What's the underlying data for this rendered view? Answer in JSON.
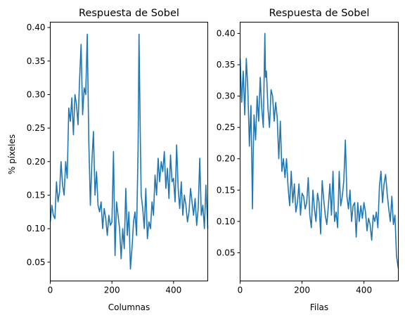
{
  "chart_data": [
    {
      "type": "line",
      "title": "Respuesta de Sobel",
      "xlabel": "Columnas",
      "ylabel": "% píxeles",
      "xlim": [
        0,
        511
      ],
      "ylim": [
        0.022,
        0.408
      ],
      "xticks": [
        0,
        200,
        400
      ],
      "yticks": [
        0.05,
        0.1,
        0.15,
        0.2,
        0.25,
        0.3,
        0.35,
        0.4
      ],
      "xticklabels": [
        "0",
        "200",
        "400"
      ],
      "yticklabels": [
        "0.05",
        "0.10",
        "0.15",
        "0.20",
        "0.25",
        "0.30",
        "0.35",
        "0.40"
      ],
      "color": "#1f77b4",
      "series": [
        {
          "x": [
            0,
            5,
            10,
            15,
            20,
            25,
            30,
            35,
            40,
            45,
            50,
            55,
            60,
            65,
            70,
            75,
            80,
            85,
            90,
            95,
            100,
            105,
            110,
            115,
            120,
            125,
            130,
            135,
            140,
            145,
            150,
            155,
            160,
            165,
            170,
            175,
            180,
            185,
            190,
            195,
            200,
            205,
            210,
            215,
            220,
            225,
            230,
            235,
            240,
            245,
            250,
            255,
            260,
            265,
            270,
            275,
            280,
            285,
            288,
            292,
            295,
            300,
            305,
            310,
            315,
            320,
            325,
            330,
            335,
            340,
            345,
            350,
            355,
            360,
            365,
            370,
            375,
            380,
            385,
            390,
            395,
            400,
            405,
            410,
            415,
            420,
            425,
            430,
            435,
            440,
            445,
            450,
            455,
            460,
            465,
            470,
            475,
            480,
            485,
            490,
            495,
            500,
            505,
            511
          ],
          "values": [
            0.11,
            0.135,
            0.12,
            0.115,
            0.17,
            0.14,
            0.155,
            0.2,
            0.165,
            0.15,
            0.2,
            0.175,
            0.28,
            0.26,
            0.295,
            0.24,
            0.3,
            0.285,
            0.255,
            0.32,
            0.375,
            0.27,
            0.31,
            0.3,
            0.39,
            0.23,
            0.135,
            0.2,
            0.245,
            0.15,
            0.185,
            0.135,
            0.125,
            0.14,
            0.1,
            0.13,
            0.115,
            0.09,
            0.12,
            0.105,
            0.11,
            0.215,
            0.06,
            0.14,
            0.12,
            0.1,
            0.055,
            0.1,
            0.07,
            0.16,
            0.09,
            0.125,
            0.04,
            0.07,
            0.11,
            0.125,
            0.09,
            0.22,
            0.39,
            0.24,
            0.15,
            0.13,
            0.1,
            0.16,
            0.085,
            0.11,
            0.1,
            0.14,
            0.12,
            0.18,
            0.15,
            0.205,
            0.17,
            0.2,
            0.185,
            0.215,
            0.16,
            0.19,
            0.145,
            0.21,
            0.17,
            0.175,
            0.14,
            0.225,
            0.16,
            0.13,
            0.17,
            0.12,
            0.15,
            0.135,
            0.11,
            0.125,
            0.16,
            0.14,
            0.12,
            0.145,
            0.105,
            0.13,
            0.205,
            0.12,
            0.135,
            0.1,
            0.165,
            0.1
          ]
        }
      ]
    },
    {
      "type": "line",
      "title": "Respuesta de Sobel",
      "xlabel": "Filas",
      "ylabel": "",
      "xlim": [
        0,
        511
      ],
      "ylim": [
        0.005,
        0.418
      ],
      "xticks": [
        0,
        200,
        400
      ],
      "yticks": [
        0.05,
        0.1,
        0.15,
        0.2,
        0.25,
        0.3,
        0.35,
        0.4
      ],
      "xticklabels": [
        "0",
        "200",
        "400"
      ],
      "yticklabels": [
        "0.05",
        "0.10",
        "0.15",
        "0.20",
        "0.25",
        "0.30",
        "0.35",
        "0.40"
      ],
      "color": "#1f77b4",
      "series": [
        {
          "x": [
            0,
            5,
            10,
            15,
            20,
            25,
            30,
            35,
            40,
            42,
            45,
            50,
            55,
            60,
            65,
            70,
            75,
            80,
            82,
            85,
            90,
            95,
            100,
            105,
            110,
            115,
            120,
            125,
            130,
            135,
            140,
            145,
            150,
            155,
            160,
            165,
            170,
            175,
            180,
            185,
            190,
            195,
            200,
            205,
            210,
            215,
            220,
            225,
            230,
            235,
            240,
            245,
            250,
            255,
            260,
            265,
            270,
            275,
            280,
            285,
            290,
            295,
            300,
            305,
            310,
            315,
            320,
            325,
            330,
            335,
            340,
            345,
            350,
            355,
            360,
            365,
            370,
            375,
            380,
            385,
            390,
            395,
            400,
            405,
            410,
            415,
            420,
            425,
            430,
            435,
            440,
            445,
            450,
            455,
            460,
            465,
            470,
            475,
            480,
            485,
            490,
            495,
            500,
            505,
            511
          ],
          "values": [
            0.36,
            0.29,
            0.34,
            0.27,
            0.36,
            0.31,
            0.22,
            0.285,
            0.12,
            0.2,
            0.27,
            0.23,
            0.3,
            0.26,
            0.33,
            0.28,
            0.25,
            0.4,
            0.33,
            0.34,
            0.28,
            0.25,
            0.31,
            0.3,
            0.26,
            0.29,
            0.265,
            0.2,
            0.26,
            0.18,
            0.2,
            0.17,
            0.2,
            0.155,
            0.125,
            0.18,
            0.13,
            0.16,
            0.115,
            0.13,
            0.16,
            0.11,
            0.145,
            0.14,
            0.12,
            0.13,
            0.17,
            0.11,
            0.09,
            0.15,
            0.12,
            0.1,
            0.145,
            0.13,
            0.08,
            0.165,
            0.135,
            0.11,
            0.095,
            0.125,
            0.16,
            0.11,
            0.18,
            0.1,
            0.115,
            0.09,
            0.18,
            0.125,
            0.14,
            0.165,
            0.23,
            0.14,
            0.12,
            0.15,
            0.1,
            0.125,
            0.13,
            0.075,
            0.13,
            0.1,
            0.125,
            0.105,
            0.13,
            0.115,
            0.085,
            0.105,
            0.095,
            0.07,
            0.11,
            0.1,
            0.115,
            0.09,
            0.155,
            0.18,
            0.13,
            0.16,
            0.175,
            0.145,
            0.12,
            0.1,
            0.14,
            0.095,
            0.11,
            0.045,
            0.025
          ]
        }
      ]
    }
  ]
}
